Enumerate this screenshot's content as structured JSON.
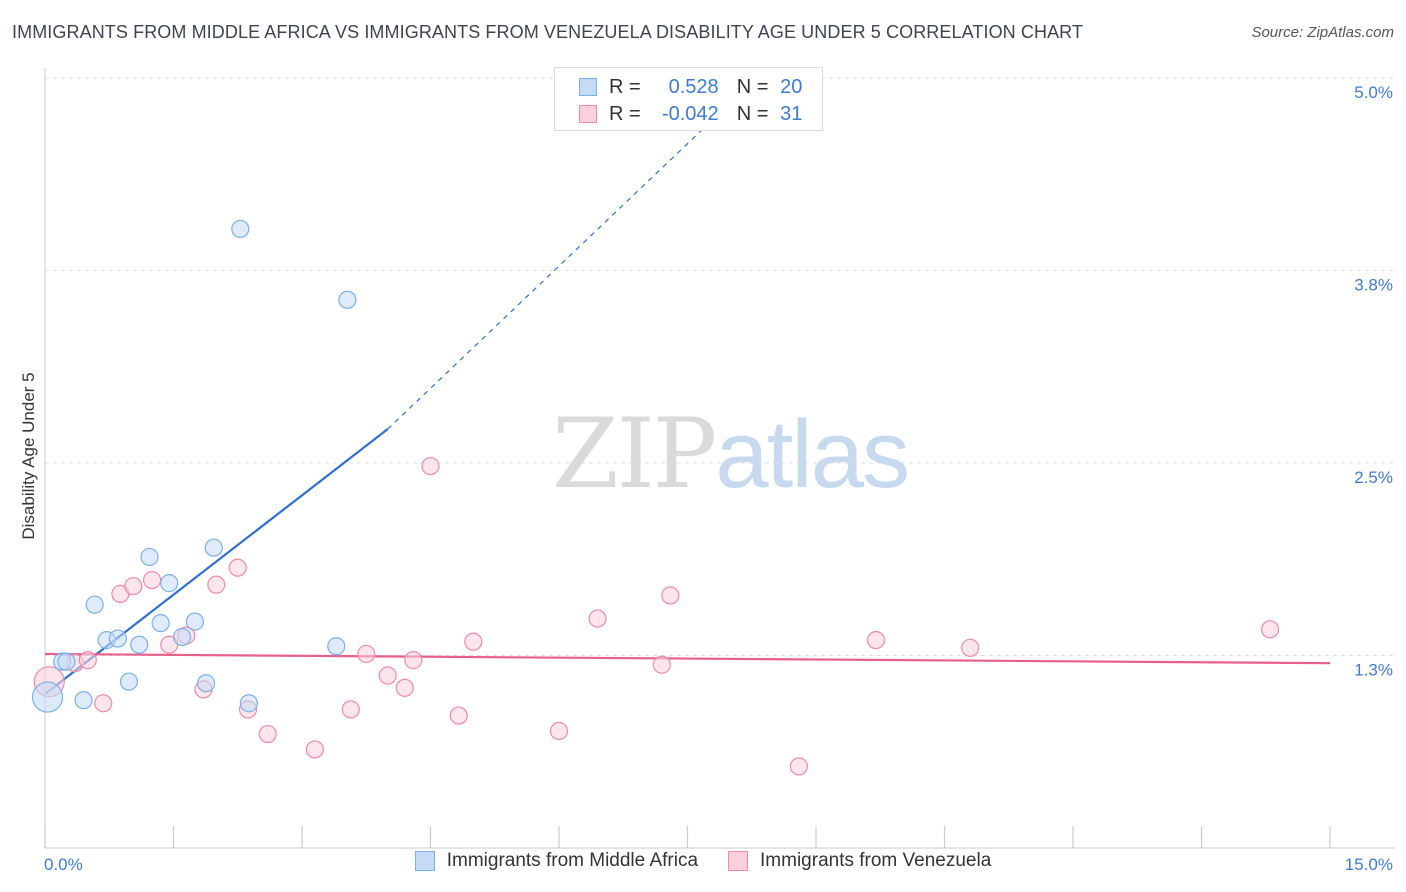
{
  "header": {
    "title": "IMMIGRANTS FROM MIDDLE AFRICA VS IMMIGRANTS FROM VENEZUELA DISABILITY AGE UNDER 5 CORRELATION CHART",
    "source": "Source: ZipAtlas.com"
  },
  "watermark": {
    "zip": "ZIP",
    "atlas": "atlas"
  },
  "legend": {
    "rows": [
      {
        "r_label": "R =",
        "r_value": "0.528",
        "n_label": "N =",
        "n_value": "20",
        "color": "#7ab0ec",
        "fill": "#c5dbf5"
      },
      {
        "r_label": "R =",
        "r_value": "-0.042",
        "n_label": "N =",
        "n_value": "31",
        "color": "#f08aa8",
        "fill": "#fad0dc"
      }
    ]
  },
  "colors": {
    "blue_fill": "#c5dbf5",
    "blue_stroke": "#7ab0ec",
    "blue_line": "#2d6fd1",
    "pink_fill": "#fad0dc",
    "pink_stroke": "#f08aa8",
    "pink_line": "#e8608a",
    "tick_label": "#3d7bd6",
    "grid": "#d9dde3"
  },
  "chart_data": {
    "type": "scatter",
    "title": "IMMIGRANTS FROM MIDDLE AFRICA VS IMMIGRANTS FROM VENEZUELA DISABILITY AGE UNDER 5 CORRELATION CHART",
    "xlabel": "",
    "ylabel": "Disability Age Under 5",
    "xlim": [
      0.0,
      15.0
    ],
    "ylim": [
      0.0,
      5.0
    ],
    "x_tick_labels": [
      "0.0%",
      "15.0%"
    ],
    "y_ticks": [
      1.25,
      2.5,
      3.75,
      5.0
    ],
    "y_tick_labels": [
      "1.3%",
      "2.5%",
      "3.8%",
      "5.0%"
    ],
    "grid": true,
    "legend_position": "top-center",
    "series": [
      {
        "name": "Immigrants from Middle Africa",
        "color": "#7ab0ec",
        "points": [
          {
            "x": 0.03,
            "y": 0.98
          },
          {
            "x": 0.2,
            "y": 1.21
          },
          {
            "x": 0.25,
            "y": 1.21
          },
          {
            "x": 0.45,
            "y": 0.96
          },
          {
            "x": 0.58,
            "y": 1.58
          },
          {
            "x": 0.72,
            "y": 1.35
          },
          {
            "x": 0.85,
            "y": 1.36
          },
          {
            "x": 0.98,
            "y": 1.08
          },
          {
            "x": 1.1,
            "y": 1.32
          },
          {
            "x": 1.22,
            "y": 1.89
          },
          {
            "x": 1.35,
            "y": 1.46
          },
          {
            "x": 1.45,
            "y": 1.72
          },
          {
            "x": 1.6,
            "y": 1.37
          },
          {
            "x": 1.75,
            "y": 1.47
          },
          {
            "x": 1.88,
            "y": 1.07
          },
          {
            "x": 1.97,
            "y": 1.95
          },
          {
            "x": 2.28,
            "y": 4.02
          },
          {
            "x": 2.38,
            "y": 0.94
          },
          {
            "x": 3.4,
            "y": 1.31
          },
          {
            "x": 3.53,
            "y": 3.56
          }
        ]
      },
      {
        "name": "Immigrants from Venezuela",
        "color": "#f08aa8",
        "points": [
          {
            "x": 0.05,
            "y": 1.08
          },
          {
            "x": 0.35,
            "y": 1.2
          },
          {
            "x": 0.5,
            "y": 1.22
          },
          {
            "x": 0.68,
            "y": 0.94
          },
          {
            "x": 0.88,
            "y": 1.65
          },
          {
            "x": 1.03,
            "y": 1.7
          },
          {
            "x": 1.25,
            "y": 1.74
          },
          {
            "x": 1.45,
            "y": 1.32
          },
          {
            "x": 1.65,
            "y": 1.38
          },
          {
            "x": 1.85,
            "y": 1.03
          },
          {
            "x": 2.0,
            "y": 1.71
          },
          {
            "x": 2.25,
            "y": 1.82
          },
          {
            "x": 2.37,
            "y": 0.9
          },
          {
            "x": 2.6,
            "y": 0.74
          },
          {
            "x": 3.15,
            "y": 0.64
          },
          {
            "x": 3.57,
            "y": 0.9
          },
          {
            "x": 3.75,
            "y": 1.26
          },
          {
            "x": 4.0,
            "y": 1.12
          },
          {
            "x": 4.2,
            "y": 1.04
          },
          {
            "x": 4.3,
            "y": 1.22
          },
          {
            "x": 4.5,
            "y": 2.48
          },
          {
            "x": 4.83,
            "y": 0.86
          },
          {
            "x": 5.0,
            "y": 1.34
          },
          {
            "x": 6.0,
            "y": 0.76
          },
          {
            "x": 6.45,
            "y": 1.49
          },
          {
            "x": 7.2,
            "y": 1.19
          },
          {
            "x": 7.3,
            "y": 1.64
          },
          {
            "x": 8.8,
            "y": 0.53
          },
          {
            "x": 9.7,
            "y": 1.35
          },
          {
            "x": 10.8,
            "y": 1.3
          },
          {
            "x": 14.3,
            "y": 1.42
          }
        ]
      }
    ],
    "trend_lines": [
      {
        "series": "Immigrants from Middle Africa",
        "solid": {
          "x0": 0.0,
          "y0": 1.0,
          "x1": 4.0,
          "y1": 2.72
        },
        "dashed": {
          "x0": 4.0,
          "y0": 2.72,
          "x1": 8.4,
          "y1": 5.05
        }
      },
      {
        "series": "Immigrants from Venezuela",
        "solid": {
          "x0": 0.0,
          "y0": 1.26,
          "x1": 15.0,
          "y1": 1.2
        }
      }
    ]
  }
}
